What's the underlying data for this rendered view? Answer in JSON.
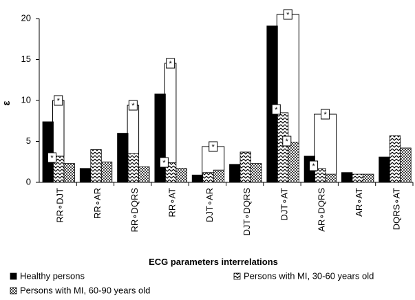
{
  "chart_data": {
    "type": "bar",
    "y_label": "ε",
    "x_label": "ECG parameters interrelations",
    "categories": [
      "RR∘DJT",
      "RR∘AR",
      "RR∘DQRS",
      "RR∘AT",
      "DJT∘AR",
      "DJT∘DQRS",
      "DJT∘AT",
      "AR∘DQRS",
      "AR∘AT",
      "DQRS∘AT"
    ],
    "series": [
      {
        "name": "Healthy persons",
        "color": "#000000",
        "pattern": "solid",
        "values": [
          7.4,
          1.7,
          6.0,
          10.8,
          0.9,
          2.2,
          19.1,
          3.2,
          1.2,
          3.1
        ]
      },
      {
        "name": "Persons with MI, 30-60 years old",
        "color": "#000000",
        "pattern": "zigzag",
        "values": [
          3.2,
          4.0,
          3.5,
          2.4,
          1.2,
          3.7,
          8.5,
          1.7,
          1.0,
          5.7
        ]
      },
      {
        "name": "Persons with MI, 60-90 years old",
        "color": "#555555",
        "pattern": "checker",
        "values": [
          2.3,
          2.5,
          1.9,
          1.7,
          1.5,
          2.3,
          4.9,
          1.0,
          1.0,
          4.2
        ]
      }
    ],
    "ylim": [
      0,
      20
    ],
    "yticks": [
      0,
      5,
      10,
      15,
      20
    ],
    "annotations": [
      "*",
      "*",
      "*",
      "*",
      "*",
      "*",
      "*",
      "*",
      "*",
      "*",
      "*"
    ]
  }
}
